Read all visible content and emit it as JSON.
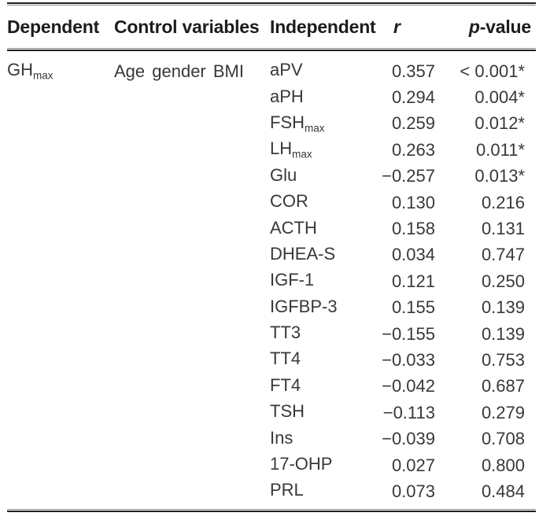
{
  "table": {
    "headers": {
      "dependent": "Dependent",
      "control": "Control variables",
      "independent": "Independent",
      "r": "r",
      "p_italic": "p",
      "p_rest": "-value"
    },
    "dependent": {
      "text": "GH",
      "sub": "max"
    },
    "control": "Age gender BMI",
    "rows": [
      {
        "ind": "aPV",
        "sub": "",
        "r": "0.357",
        "p": "< 0.001*"
      },
      {
        "ind": "aPH",
        "sub": "",
        "r": "0.294",
        "p": "0.004*"
      },
      {
        "ind": "FSH",
        "sub": "max",
        "r": "0.259",
        "p": "0.012*"
      },
      {
        "ind": "LH",
        "sub": "max",
        "r": "0.263",
        "p": "0.011*"
      },
      {
        "ind": "Glu",
        "sub": "",
        "r": "−0.257",
        "p": "0.013*"
      },
      {
        "ind": "COR",
        "sub": "",
        "r": "0.130",
        "p": "0.216"
      },
      {
        "ind": "ACTH",
        "sub": "",
        "r": "0.158",
        "p": "0.131"
      },
      {
        "ind": "DHEA-S",
        "sub": "",
        "r": "0.034",
        "p": "0.747"
      },
      {
        "ind": "IGF-1",
        "sub": "",
        "r": "0.121",
        "p": "0.250"
      },
      {
        "ind": "IGFBP-3",
        "sub": "",
        "r": "0.155",
        "p": "0.139"
      },
      {
        "ind": "TT3",
        "sub": "",
        "r": "−0.155",
        "p": "0.139"
      },
      {
        "ind": "TT4",
        "sub": "",
        "r": "−0.033",
        "p": "0.753"
      },
      {
        "ind": "FT4",
        "sub": "",
        "r": "−0.042",
        "p": "0.687"
      },
      {
        "ind": "TSH",
        "sub": "",
        "r": "−0.113",
        "p": "0.279"
      },
      {
        "ind": "Ins",
        "sub": "",
        "r": "−0.039",
        "p": "0.708"
      },
      {
        "ind": "17-OHP",
        "sub": "",
        "r": "0.027",
        "p": "0.800"
      },
      {
        "ind": "PRL",
        "sub": "",
        "r": "0.073",
        "p": "0.484"
      }
    ],
    "colors": {
      "background": "#ffffff",
      "body_text": "#383838",
      "header_text": "#1c1c1c",
      "rule_dark": "#1f1f1f",
      "rule_light": "#8a8a8a"
    }
  }
}
